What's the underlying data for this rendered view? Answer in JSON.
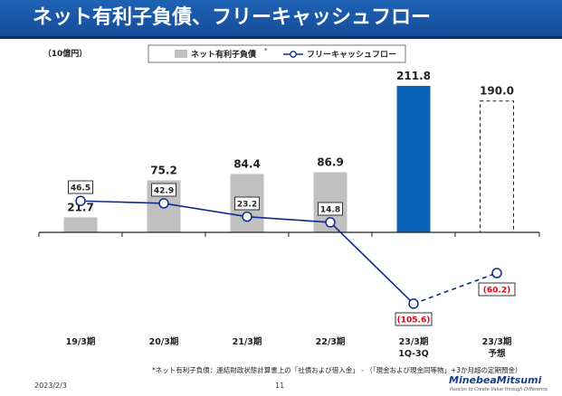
{
  "slide": {
    "title": "ネット有利子負債、フリーキャッシュフロー",
    "date": "2023/2/3",
    "page": "11",
    "logo": "MinebeaMitsumi",
    "tagline": "Passion to Create Value through Difference",
    "footnote": "*ネット有利子負債：連結財政状態計算書上の「社債および借入金」 - （「現金および現金同等物」+3か月超の定期預金）"
  },
  "colors": {
    "title_bar": "#1a57a8",
    "bar_gray": "#c0c0c0",
    "bar_blue": "#0b63b8",
    "line_navy": "#0d2b8c",
    "negative_red": "#e60012"
  },
  "chart_data": {
    "type": "bar",
    "unit_label": "（10億円）",
    "categories": [
      "19/3期",
      "20/3期",
      "21/3期",
      "22/3期",
      "23/3期\n1Q-3Q",
      "23/3期\n予想"
    ],
    "legend": {
      "bar_label": "ネット有利子負債",
      "bar_marker": "*",
      "line_label": "フリーキャッシュフロー"
    },
    "series": [
      {
        "name": "ネット有利子負債",
        "kind": "bar",
        "values": [
          21.7,
          75.2,
          84.4,
          86.9,
          211.8,
          190.0
        ],
        "labels": [
          "21.7",
          "75.2",
          "84.4",
          "86.9",
          "211.8",
          "190.0"
        ],
        "styles": [
          "gray",
          "gray",
          "gray",
          "gray",
          "blue",
          "dashed"
        ]
      },
      {
        "name": "フリーキャッシュフロー",
        "kind": "line",
        "values": [
          46.5,
          42.9,
          23.2,
          14.8,
          -105.6,
          -60.2
        ],
        "labels": [
          "46.5",
          "42.9",
          "23.2",
          "14.8",
          "(105.6)",
          "(60.2)"
        ],
        "segments": [
          "solid",
          "solid",
          "solid",
          "solid",
          "dashed"
        ]
      }
    ]
  }
}
